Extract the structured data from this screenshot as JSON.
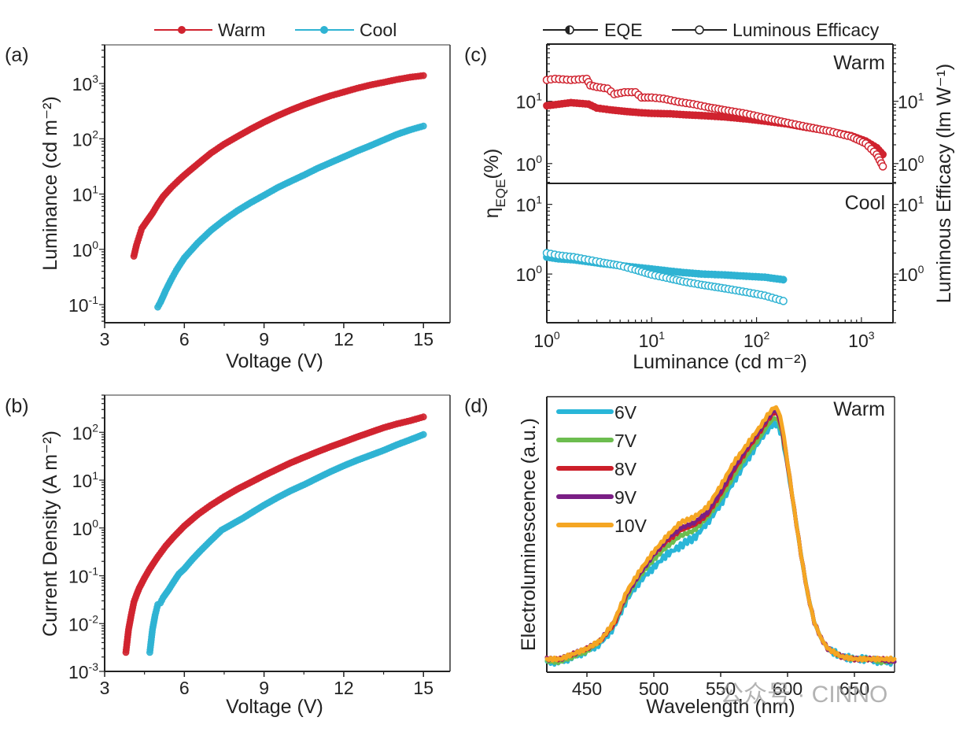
{
  "figure": {
    "colors": {
      "warm": "#d0232f",
      "cool": "#2fb3d3",
      "axis": "#222222",
      "frame_top": "#999999"
    },
    "watermark": "公众号 · CINNO"
  },
  "chart_data": [
    {
      "id": "a",
      "panel_label": "(a)",
      "type": "scatter",
      "xlabel": "Voltage (V)",
      "ylabel": "Luminance (cd m⁻²)",
      "xscale": "linear",
      "yscale": "log",
      "xlim": [
        3,
        16
      ],
      "ylim": [
        0.047,
        5000
      ],
      "xticks": [
        3,
        6,
        9,
        12,
        15
      ],
      "yticks": [
        {
          "v": 0.1,
          "base": "10",
          "exp": "-1"
        },
        {
          "v": 1,
          "base": "10",
          "exp": "0"
        },
        {
          "v": 10,
          "base": "10",
          "exp": "1"
        },
        {
          "v": 100,
          "base": "10",
          "exp": "2"
        },
        {
          "v": 1000,
          "base": "10",
          "exp": "3"
        }
      ],
      "legend": {
        "placement": "top-center-outside",
        "entries": [
          {
            "name": "Warm",
            "color": "#d0232f"
          },
          {
            "name": "Cool",
            "color": "#2fb3d3"
          }
        ]
      },
      "series": [
        {
          "name": "Warm",
          "color": "#d0232f",
          "x": [
            4.1,
            4.2,
            4.3,
            4.4,
            4.6,
            4.8,
            5.0,
            5.2,
            5.5,
            5.8,
            6.0,
            6.5,
            7.0,
            7.5,
            8.0,
            8.5,
            9.0,
            9.5,
            10.0,
            10.5,
            11.0,
            11.5,
            12.0,
            12.5,
            13.0,
            13.5,
            14.0,
            14.5,
            15.0
          ],
          "y": [
            0.75,
            1.2,
            1.7,
            2.4,
            3.3,
            4.5,
            6.5,
            9,
            13,
            18,
            22,
            35,
            55,
            80,
            110,
            150,
            200,
            260,
            330,
            410,
            500,
            600,
            700,
            820,
            940,
            1050,
            1180,
            1300,
            1390
          ]
        },
        {
          "name": "Cool",
          "color": "#2fb3d3",
          "x": [
            5.0,
            5.1,
            5.2,
            5.3,
            5.5,
            5.7,
            6.0,
            6.5,
            7.0,
            7.5,
            8.0,
            8.5,
            9.0,
            9.5,
            10.0,
            10.5,
            11.0,
            11.5,
            12.0,
            12.5,
            13.0,
            13.5,
            14.0,
            14.5,
            15.0
          ],
          "y": [
            0.09,
            0.11,
            0.14,
            0.18,
            0.28,
            0.42,
            0.7,
            1.3,
            2.2,
            3.4,
            5,
            7,
            9.5,
            13,
            17,
            22,
            29,
            37,
            47,
            60,
            75,
            95,
            120,
            145,
            170
          ]
        }
      ]
    },
    {
      "id": "b",
      "panel_label": "(b)",
      "type": "scatter",
      "xlabel": "Voltage (V)",
      "ylabel": "Current Density (A m⁻²)",
      "xscale": "linear",
      "yscale": "log",
      "xlim": [
        3,
        16
      ],
      "ylim": [
        0.001,
        600
      ],
      "xticks": [
        3,
        6,
        9,
        12,
        15
      ],
      "yticks": [
        {
          "v": 0.001,
          "base": "10",
          "exp": "-3"
        },
        {
          "v": 0.01,
          "base": "10",
          "exp": "-2"
        },
        {
          "v": 0.1,
          "base": "10",
          "exp": "-1"
        },
        {
          "v": 1,
          "base": "10",
          "exp": "0"
        },
        {
          "v": 10,
          "base": "10",
          "exp": "1"
        },
        {
          "v": 100,
          "base": "10",
          "exp": "2"
        }
      ],
      "series": [
        {
          "name": "Warm",
          "color": "#d0232f",
          "x": [
            3.8,
            3.9,
            4.0,
            4.1,
            4.2,
            4.3,
            4.5,
            4.7,
            5.0,
            5.3,
            5.6,
            6.0,
            6.5,
            7.0,
            7.5,
            8.0,
            8.5,
            9.0,
            9.5,
            10.0,
            10.5,
            11.0,
            11.5,
            12.0,
            12.5,
            13.0,
            13.5,
            14.0,
            14.5,
            15.0
          ],
          "y": [
            0.0025,
            0.0075,
            0.015,
            0.028,
            0.04,
            0.055,
            0.09,
            0.14,
            0.25,
            0.42,
            0.65,
            1.1,
            1.9,
            3.0,
            4.5,
            6.5,
            9,
            12.5,
            17,
            23,
            30,
            39,
            50,
            63,
            80,
            100,
            125,
            150,
            175,
            210
          ]
        },
        {
          "name": "Cool",
          "color": "#2fb3d3",
          "x": [
            4.7,
            4.8,
            4.9,
            5.0,
            5.1,
            5.2,
            5.4,
            5.6,
            5.8,
            6.0,
            6.3,
            6.6,
            7.0,
            7.4,
            7.8,
            8.2,
            8.6,
            9.0,
            9.5,
            10.0,
            10.5,
            11.0,
            11.5,
            12.0,
            12.5,
            13.0,
            13.5,
            14.0,
            14.5,
            15.0
          ],
          "y": [
            0.0025,
            0.0075,
            0.015,
            0.025,
            0.027,
            0.035,
            0.05,
            0.075,
            0.11,
            0.14,
            0.22,
            0.33,
            0.55,
            0.9,
            1.2,
            1.6,
            2.2,
            3.0,
            4.3,
            6.0,
            8.0,
            11,
            15,
            20,
            26,
            33,
            42,
            55,
            70,
            90
          ]
        }
      ]
    },
    {
      "id": "c",
      "panel_label": "(c)",
      "type": "scatter",
      "xlabel": "Luminance (cd m⁻²)",
      "ylabel_left": "η_EQE (%)",
      "ylabel_left_main": "η",
      "ylabel_left_sub": "EQE",
      "ylabel_left_suffix": "(%)",
      "ylabel_right": "Luminous Efficacy (lm W⁻¹)",
      "xscale": "log",
      "xlim": [
        1,
        2000
      ],
      "xticks": [
        {
          "v": 1,
          "base": "10",
          "exp": "0"
        },
        {
          "v": 10,
          "base": "10",
          "exp": "1"
        },
        {
          "v": 100,
          "base": "10",
          "exp": "2"
        },
        {
          "v": 1000,
          "base": "10",
          "exp": "3"
        }
      ],
      "legend": {
        "placement": "top-outside",
        "entries": [
          {
            "name": "EQE",
            "marker": "half-filled-circle"
          },
          {
            "name": "Luminous Efficacy",
            "marker": "open-circle"
          }
        ]
      },
      "subpanels": [
        {
          "annotation": "Warm",
          "ylim": [
            0.48,
            83
          ],
          "yticks": [
            {
              "v": 1,
              "base": "10",
              "exp": "0"
            },
            {
              "v": 10,
              "base": "10",
              "exp": "1"
            }
          ],
          "series": [
            {
              "name": "Warm EQE",
              "color": "#d0232f",
              "marker": "filled",
              "x": [
                1.0,
                1.7,
                2.5,
                3.0,
                4.0,
                5.5,
                7.5,
                10,
                15,
                20,
                30,
                50,
                80,
                120,
                200,
                300,
                500,
                800,
                1100,
                1400,
                1600
              ],
              "y": [
                8.5,
                9.5,
                9.0,
                7.8,
                7.3,
                6.9,
                6.6,
                6.4,
                6.3,
                6.1,
                5.9,
                5.6,
                5.2,
                4.8,
                4.3,
                3.8,
                3.3,
                2.8,
                2.3,
                1.8,
                1.4
              ]
            },
            {
              "name": "Warm Luminous Efficacy",
              "color": "#d0232f",
              "marker": "open",
              "x": [
                1.0,
                1.2,
                1.7,
                2.4,
                2.6,
                3.0,
                3.8,
                4.4,
                5.5,
                7.0,
                8.0,
                10,
                13,
                18,
                25,
                35,
                50,
                80,
                120,
                200,
                300,
                500,
                800,
                1100,
                1400,
                1600
              ],
              "y": [
                22,
                23,
                22,
                23,
                18,
                17,
                16,
                13,
                14,
                14,
                11.5,
                11.5,
                11,
                9.8,
                9,
                8,
                7.2,
                6.3,
                5.4,
                4.5,
                3.9,
                3.3,
                2.7,
                2.1,
                1.4,
                0.9
              ]
            }
          ]
        },
        {
          "annotation": "Cool",
          "ylim": [
            0.2,
            20
          ],
          "yticks": [
            {
              "v": 1,
              "base": "10",
              "exp": "0"
            },
            {
              "v": 10,
              "base": "10",
              "exp": "1"
            }
          ],
          "series": [
            {
              "name": "Cool EQE",
              "color": "#2fb3d3",
              "marker": "filled",
              "x": [
                1.0,
                1.3,
                1.8,
                2.5,
                3.5,
                5,
                7,
                10,
                15,
                20,
                30,
                50,
                80,
                120,
                180
              ],
              "y": [
                1.75,
                1.65,
                1.6,
                1.5,
                1.4,
                1.32,
                1.25,
                1.18,
                1.1,
                1.05,
                1.0,
                0.97,
                0.93,
                0.9,
                0.83
              ]
            },
            {
              "name": "Cool Luminous Efficacy",
              "color": "#2fb3d3",
              "marker": "open",
              "x": [
                1.0,
                1.3,
                1.8,
                2.5,
                3.5,
                5,
                7,
                10,
                15,
                20,
                30,
                50,
                80,
                120,
                180
              ],
              "y": [
                2.0,
                1.85,
                1.75,
                1.6,
                1.45,
                1.32,
                1.15,
                0.98,
                0.86,
                0.78,
                0.7,
                0.62,
                0.55,
                0.49,
                0.41
              ]
            }
          ]
        }
      ]
    },
    {
      "id": "d",
      "panel_label": "(d)",
      "type": "line",
      "xlabel": "Wavelength (nm)",
      "ylabel": "Electroluminescence (a.u.)",
      "annotation": "Warm",
      "xlim": [
        420,
        680
      ],
      "ylim": [
        0,
        1.05
      ],
      "xticks": [
        450,
        500,
        550,
        600,
        650
      ],
      "legend": {
        "placement": "top-left",
        "entries": [
          "6V",
          "7V",
          "8V",
          "9V",
          "10V"
        ]
      },
      "x": [
        420,
        430,
        440,
        450,
        460,
        470,
        480,
        490,
        500,
        510,
        520,
        525,
        530,
        540,
        550,
        560,
        570,
        580,
        585,
        590,
        593,
        596,
        600,
        605,
        610,
        615,
        620,
        625,
        630,
        640,
        650,
        660,
        670,
        680
      ],
      "series": [
        {
          "name": "6V",
          "color": "#29b6d8",
          "y": [
            0.04,
            0.04,
            0.06,
            0.08,
            0.11,
            0.17,
            0.28,
            0.35,
            0.4,
            0.45,
            0.48,
            0.5,
            0.51,
            0.57,
            0.64,
            0.73,
            0.81,
            0.89,
            0.92,
            0.95,
            0.94,
            0.9,
            0.78,
            0.62,
            0.45,
            0.3,
            0.19,
            0.13,
            0.09,
            0.06,
            0.05,
            0.05,
            0.04,
            0.04
          ]
        },
        {
          "name": "7V",
          "color": "#6cbd4f",
          "y": [
            0.04,
            0.04,
            0.06,
            0.08,
            0.12,
            0.18,
            0.29,
            0.37,
            0.43,
            0.48,
            0.52,
            0.53,
            0.54,
            0.59,
            0.66,
            0.75,
            0.83,
            0.9,
            0.94,
            0.97,
            0.96,
            0.91,
            0.79,
            0.62,
            0.45,
            0.3,
            0.19,
            0.13,
            0.09,
            0.06,
            0.05,
            0.05,
            0.04,
            0.04
          ]
        },
        {
          "name": "8V",
          "color": "#cc1f2a",
          "y": [
            0.05,
            0.05,
            0.07,
            0.09,
            0.12,
            0.18,
            0.3,
            0.38,
            0.45,
            0.5,
            0.54,
            0.55,
            0.56,
            0.6,
            0.68,
            0.77,
            0.85,
            0.92,
            0.96,
            0.99,
            0.98,
            0.92,
            0.79,
            0.62,
            0.45,
            0.3,
            0.19,
            0.13,
            0.09,
            0.06,
            0.05,
            0.05,
            0.05,
            0.04
          ]
        },
        {
          "name": "9V",
          "color": "#7a1f85",
          "y": [
            0.05,
            0.05,
            0.07,
            0.09,
            0.12,
            0.19,
            0.3,
            0.38,
            0.45,
            0.51,
            0.55,
            0.56,
            0.57,
            0.61,
            0.69,
            0.78,
            0.86,
            0.93,
            0.97,
            1.0,
            0.99,
            0.93,
            0.8,
            0.62,
            0.45,
            0.3,
            0.19,
            0.13,
            0.09,
            0.06,
            0.05,
            0.05,
            0.05,
            0.04
          ]
        },
        {
          "name": "10V",
          "color": "#f5a623",
          "y": [
            0.05,
            0.05,
            0.07,
            0.09,
            0.12,
            0.19,
            0.31,
            0.39,
            0.46,
            0.52,
            0.57,
            0.58,
            0.59,
            0.63,
            0.71,
            0.8,
            0.87,
            0.94,
            0.98,
            1.01,
            1.0,
            0.94,
            0.8,
            0.62,
            0.45,
            0.3,
            0.19,
            0.13,
            0.09,
            0.06,
            0.05,
            0.05,
            0.05,
            0.05
          ]
        }
      ]
    }
  ]
}
